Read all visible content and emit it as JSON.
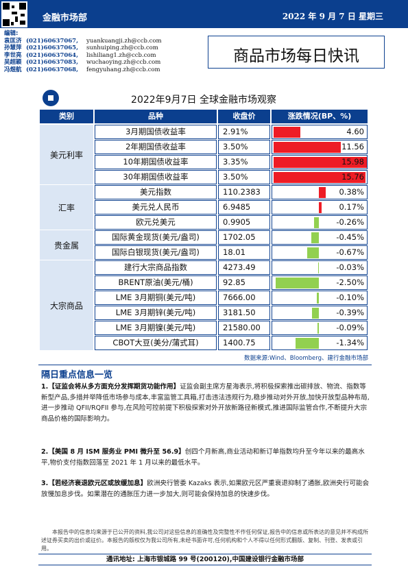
{
  "header": {
    "brand": "金融市场部",
    "date": "2022 年 9 月 7 日  星期三"
  },
  "editors": {
    "label": "编辑:",
    "people": [
      {
        "name": "袁匡济",
        "phone": "(021)60637067,",
        "email": "yuankuangji.zh@ccb.com"
      },
      {
        "name": "孙慧萍",
        "phone": "(021)60637065,",
        "email": "sunhuiping.zh@ccb.com"
      },
      {
        "name": "李世亮",
        "phone": "(021)60637064,",
        "email": "lishiliang1.zh@ccb.com"
      },
      {
        "name": "吴超颖",
        "phone": "(021)60637083,",
        "email": "wuchaoying.zh@ccb.com"
      },
      {
        "name": "冯煜航",
        "phone": "(021)60637068,",
        "email": "fengyuhang.zh@ccb.com"
      }
    ]
  },
  "report_title": "商品市场每日快讯",
  "table": {
    "title": "2022年9月7日  全球金融市场观察",
    "headers": [
      "类别",
      "品种",
      "收盘价",
      "涨跌情况(BP、%)"
    ],
    "colors": {
      "up": "#ee1c25",
      "down": "#92d050",
      "header": "#0b3f8e",
      "category_bg": "#dbe6f4"
    },
    "groups": [
      {
        "category": "美元利率",
        "rows": [
          {
            "name": "3月期国债收益率",
            "value": "2.91%",
            "change": "4.60",
            "num": 4.6,
            "unit": "bp"
          },
          {
            "name": "2年期国债收益率",
            "value": "3.50%",
            "change": "11.56",
            "num": 11.56,
            "unit": "bp"
          },
          {
            "name": "10年期国债收益率",
            "value": "3.35%",
            "change": "15.98",
            "num": 15.98,
            "unit": "bp"
          },
          {
            "name": "30年期国债收益率",
            "value": "3.50%",
            "change": "15.76",
            "num": 15.76,
            "unit": "bp"
          }
        ]
      },
      {
        "category": "汇率",
        "rows": [
          {
            "name": "美元指数",
            "value": "110.2383",
            "change": "0.38%",
            "num": 0.38,
            "unit": "pct"
          },
          {
            "name": "美元兑人民币",
            "value": "6.9485",
            "change": "0.17%",
            "num": 0.17,
            "unit": "pct"
          },
          {
            "name": "欧元兑美元",
            "value": "0.9905",
            "change": "-0.26%",
            "num": -0.26,
            "unit": "pct"
          }
        ]
      },
      {
        "category": "贵金属",
        "rows": [
          {
            "name": "国际黄金现货(美元/盎司)",
            "value": "1702.05",
            "change": "-0.45%",
            "num": -0.45,
            "unit": "pct"
          },
          {
            "name": "国际白银现货(美元/盎司)",
            "value": "18.01",
            "change": "-0.67%",
            "num": -0.67,
            "unit": "pct"
          }
        ]
      },
      {
        "category": "大宗商品",
        "rows": [
          {
            "name": "建行大宗商品指数",
            "value": "4273.49",
            "change": "-0.03%",
            "num": -0.03,
            "unit": "pct"
          },
          {
            "name": "BRENT原油(美元/桶)",
            "value": "92.85",
            "change": "-2.50%",
            "num": -2.5,
            "unit": "pct"
          },
          {
            "name": "LME 3月期铜(美元/吨)",
            "value": "7666.00",
            "change": "-0.10%",
            "num": -0.1,
            "unit": "pct"
          },
          {
            "name": "LME 3月期锌(美元/吨)",
            "value": "3181.50",
            "change": "-0.39%",
            "num": -0.39,
            "unit": "pct"
          },
          {
            "name": "LME 3月期镍(美元/吨)",
            "value": "21580.00",
            "change": "-0.09%",
            "num": -0.09,
            "unit": "pct"
          },
          {
            "name": "CBOT大豆(美分/蒲式耳)",
            "value": "1400.75",
            "change": "-1.34%",
            "num": -1.34,
            "unit": "pct"
          }
        ]
      }
    ],
    "source": "数据来源:Wind、Bloomberg、建行金融市场部"
  },
  "news": {
    "section_title": "隔日重点信息一览",
    "items": [
      {
        "index": "1.",
        "headline": "【证监会将从多方面充分发挥期货功能作用】",
        "body": "证监会副主席方星海表示,将积极探索推出碳排放、物流、指数等新型产品,多措并举降低市场参与成本,丰富监管工具箱,打击违法违规行为,稳步推动对外开放,加快开放型品种布局,进一步推动 QFII/RQFII 参与,在风险可控前提下积极探索对外开放新路径新模式,推进国际监管合作,不断提升大宗商品价格的国际影响力。"
      },
      {
        "index": "2.",
        "headline": "【美国 8 月 ISM 服务业 PMI 微升至 56.9】",
        "body": "创四个月新高,商业活动和新订单指数均升至今年以来的最高水平,物价支付指数回落至 2021 年 1 月以来的最低水平。"
      },
      {
        "index": "3.",
        "headline": "【若经济衰退欧元区或放缓加息】",
        "body": "欧洲央行管委 Kazaks 表示,如果欧元区严重衰退抑制了通胀,欧洲央行可能会放慢加息步伐。如果潜在的通胀压力进一步加大,则可能会保持加息的快速步伐。"
      }
    ]
  },
  "disclaimer": "本报告中的信息均来源于已公开的资料,我公司对这些信息的准确性及完整性不作任何保证,报告中的信息或所表达的意见并不构成所述证券买卖的出价或征价。本报告的版权仅为我公司所有,未经书面许可,任何机构和个人不得以任何形式翻版、复制、刊登、发表或引用。",
  "footer": "通讯地址:  上海市银城路 99 号(200120),中国建设银行金融市场部"
}
